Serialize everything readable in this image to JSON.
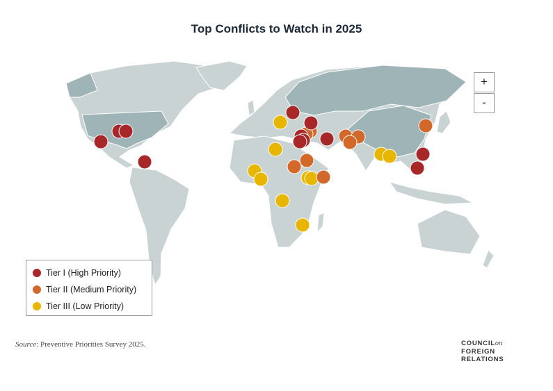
{
  "title": "Top Conflicts to Watch in 2025",
  "zoom": {
    "in": "+",
    "out": "-"
  },
  "legend": [
    "Tier I (High Priority)",
    "Tier II (Medium Priority)",
    "Tier III (Low Priority)"
  ],
  "source": {
    "label": "Source",
    "text": ": Preventive Priorities Survey 2025."
  },
  "logo": {
    "line1": "COUNCIL",
    "on": "on",
    "line2": "FOREIGN",
    "line3": "RELATIONS"
  }
}
